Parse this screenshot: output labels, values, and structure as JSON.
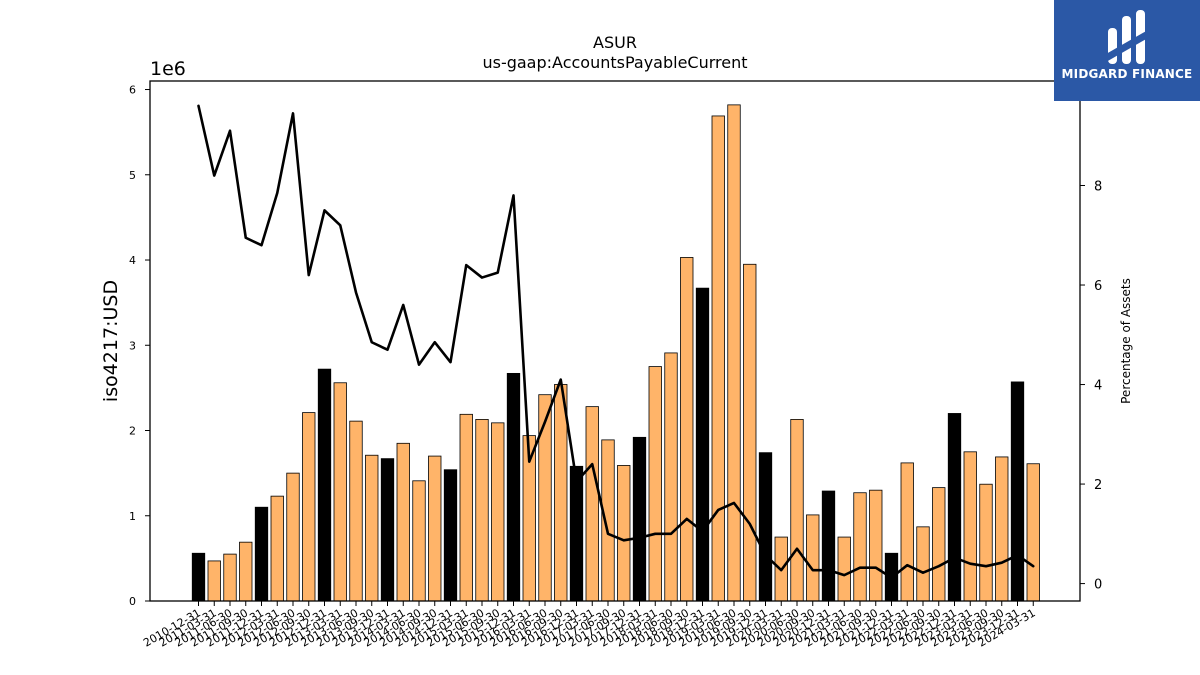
{
  "chart_data": {
    "type": "bar",
    "title": "ASUR",
    "subtitle": "us-gaap:AccountsPayableCurrent",
    "ylabel": "iso4217:USD",
    "y_multiplier_label": "1e6",
    "y2label": "Percentage of Assets",
    "ylim": [
      0,
      6100000
    ],
    "y2lim": [
      -0.35,
      10.1
    ],
    "yticks": [
      "0",
      "1",
      "2",
      "3",
      "4",
      "5",
      "6"
    ],
    "y2ticks": [
      "0",
      "2",
      "4",
      "6",
      "8"
    ],
    "categories": [
      "2010-12-31",
      "2011-03-31",
      "2011-06-30",
      "2011-09-30",
      "2011-12-31",
      "2012-03-31",
      "2012-06-30",
      "2012-09-30",
      "2012-12-31",
      "2013-03-31",
      "2013-06-30",
      "2013-09-30",
      "2013-12-31",
      "2014-03-31",
      "2014-06-30",
      "2014-09-30",
      "2014-12-31",
      "2015-03-31",
      "2015-06-30",
      "2015-09-30",
      "2015-12-31",
      "2016-03-31",
      "2016-06-30",
      "2016-09-30",
      "2016-12-31",
      "2017-03-31",
      "2017-06-30",
      "2017-09-30",
      "2017-12-31",
      "2018-03-31",
      "2018-06-30",
      "2018-09-30",
      "2018-12-31",
      "2019-03-31",
      "2019-06-30",
      "2019-09-30",
      "2019-12-31",
      "2020-03-31",
      "2020-06-30",
      "2020-09-30",
      "2020-12-31",
      "2021-03-31",
      "2021-06-30",
      "2021-09-30",
      "2021-12-31",
      "2022-03-31",
      "2022-06-30",
      "2022-09-30",
      "2022-12-31",
      "2023-03-31",
      "2023-06-30",
      "2023-09-30",
      "2023-12-31",
      "2024-03-31"
    ],
    "series": [
      {
        "kind": "bar",
        "values": [
          560000,
          470000,
          550000,
          690000,
          1100000,
          1230000,
          1500000,
          2210000,
          2720000,
          2560000,
          2110000,
          1710000,
          1670000,
          1850000,
          1410000,
          1700000,
          1540000,
          2190000,
          2130000,
          2090000,
          2670000,
          1940000,
          2420000,
          2540000,
          1580000,
          2280000,
          1890000,
          1590000,
          1920000,
          2750000,
          2910000,
          4030000,
          3670000,
          5690000,
          5820000,
          3950000,
          1740000,
          750000,
          2130000,
          1010000,
          1290000,
          750000,
          1270000,
          1300000,
          560000,
          1620000,
          870000,
          1330000,
          2200000,
          1750000,
          1370000,
          1690000,
          2570000,
          1610000
        ],
        "highlight": [
          true,
          false,
          false,
          false,
          true,
          false,
          false,
          false,
          true,
          false,
          false,
          false,
          true,
          false,
          false,
          false,
          true,
          false,
          false,
          false,
          true,
          false,
          false,
          false,
          true,
          false,
          false,
          false,
          true,
          false,
          false,
          false,
          true,
          false,
          false,
          false,
          true,
          false,
          false,
          false,
          true,
          false,
          false,
          false,
          true,
          false,
          false,
          false,
          true,
          false,
          false,
          false,
          true,
          false
        ]
      },
      {
        "kind": "line",
        "axis": "right",
        "values": [
          9.6,
          8.2,
          9.1,
          6.95,
          6.8,
          7.85,
          9.45,
          6.2,
          7.5,
          7.2,
          5.85,
          4.85,
          4.7,
          5.6,
          4.4,
          4.85,
          4.45,
          6.4,
          6.15,
          6.25,
          7.8,
          2.45,
          3.25,
          4.1,
          2.05,
          2.4,
          1.0,
          0.87,
          0.92,
          1.0,
          1.0,
          1.3,
          1.05,
          1.48,
          1.62,
          1.2,
          0.57,
          0.27,
          0.7,
          0.27,
          0.27,
          0.17,
          0.32,
          0.32,
          0.12,
          0.37,
          0.22,
          0.35,
          0.52,
          0.4,
          0.35,
          0.42,
          0.57,
          0.35
        ]
      }
    ],
    "colors": {
      "bar": "#ffb469",
      "bar_highlight": "#000000",
      "line": "#000000"
    },
    "grid": false
  },
  "logo": {
    "text": "MIDGARD FINANCE",
    "bg": "#2b58a6"
  }
}
